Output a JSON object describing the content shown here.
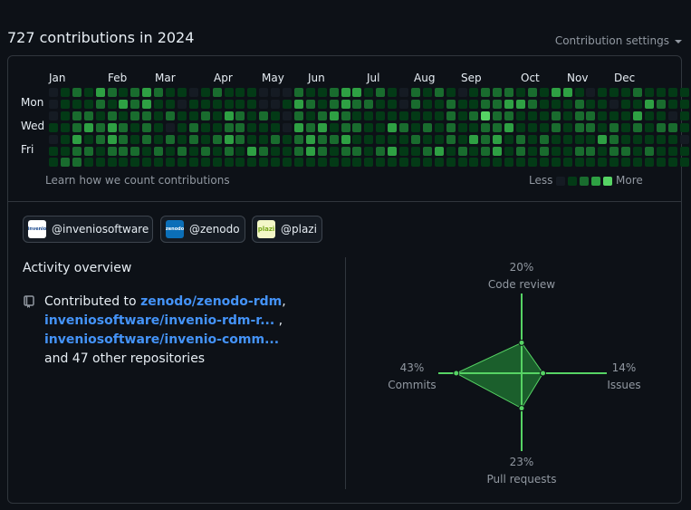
{
  "header": {
    "title": "727 contributions in 2024",
    "settings_label": "Contribution settings"
  },
  "calendar": {
    "months": [
      "Jan",
      "Feb",
      "Mar",
      "Apr",
      "May",
      "Jun",
      "Jul",
      "Aug",
      "Sep",
      "Oct",
      "Nov",
      "Dec"
    ],
    "days": [
      "Mon",
      "Wed",
      "Fri"
    ],
    "learn_label": "Learn how we count contributions",
    "less_label": "Less",
    "more_label": "More",
    "level_colors": [
      "#151b23",
      "#033a16",
      "#196c2e",
      "#2ea043",
      "#56d364"
    ],
    "levels": [
      [
        0,
        1,
        2,
        1,
        3,
        2,
        1,
        2,
        3,
        2,
        1,
        1,
        0,
        1,
        2,
        1,
        1,
        1,
        0,
        0,
        0,
        2,
        1,
        1,
        2,
        3,
        3,
        1,
        2,
        1,
        0,
        2,
        1,
        2,
        1,
        0,
        1,
        2,
        2,
        2,
        1,
        2,
        1,
        3,
        3,
        1,
        0,
        1,
        1,
        1,
        2,
        1,
        1,
        1,
        1,
        0
      ],
      [
        0,
        1,
        1,
        1,
        2,
        1,
        3,
        2,
        3,
        1,
        1,
        0,
        1,
        1,
        1,
        1,
        1,
        1,
        0,
        0,
        1,
        3,
        2,
        1,
        2,
        3,
        2,
        2,
        1,
        1,
        0,
        2,
        1,
        1,
        2,
        1,
        1,
        2,
        2,
        3,
        3,
        2,
        1,
        1,
        1,
        2,
        1,
        1,
        0,
        1,
        1,
        3,
        2,
        1,
        1,
        0
      ],
      [
        0,
        1,
        2,
        2,
        1,
        2,
        1,
        2,
        2,
        1,
        2,
        1,
        1,
        2,
        1,
        3,
        2,
        1,
        2,
        1,
        0,
        2,
        1,
        2,
        3,
        2,
        1,
        1,
        1,
        1,
        1,
        1,
        1,
        1,
        2,
        1,
        2,
        4,
        2,
        2,
        1,
        1,
        1,
        2,
        1,
        2,
        2,
        1,
        1,
        1,
        3,
        1,
        1,
        0,
        1,
        1
      ],
      [
        1,
        1,
        2,
        3,
        2,
        3,
        2,
        1,
        2,
        1,
        0,
        1,
        2,
        1,
        1,
        2,
        2,
        1,
        1,
        1,
        0,
        3,
        2,
        3,
        1,
        2,
        2,
        1,
        1,
        3,
        2,
        1,
        2,
        1,
        2,
        1,
        1,
        2,
        2,
        3,
        1,
        1,
        1,
        2,
        1,
        2,
        2,
        1,
        2,
        1,
        2,
        1,
        2,
        2,
        1,
        1
      ],
      [
        0,
        1,
        3,
        1,
        2,
        3,
        2,
        1,
        2,
        1,
        2,
        1,
        2,
        1,
        2,
        3,
        2,
        1,
        1,
        2,
        1,
        2,
        3,
        2,
        2,
        3,
        1,
        1,
        1,
        1,
        1,
        2,
        1,
        1,
        2,
        1,
        3,
        2,
        3,
        1,
        2,
        1,
        2,
        1,
        1,
        1,
        1,
        3,
        2,
        1,
        1,
        1,
        1,
        1,
        0,
        0
      ],
      [
        1,
        1,
        2,
        2,
        1,
        2,
        2,
        2,
        1,
        2,
        1,
        2,
        1,
        2,
        1,
        2,
        1,
        3,
        2,
        1,
        1,
        2,
        3,
        2,
        1,
        2,
        2,
        1,
        2,
        3,
        1,
        1,
        2,
        3,
        1,
        2,
        1,
        2,
        3,
        1,
        2,
        1,
        2,
        1,
        1,
        2,
        2,
        1,
        2,
        2,
        1,
        2,
        1,
        1,
        1,
        0
      ],
      [
        1,
        2,
        2,
        1,
        1,
        1,
        1,
        1,
        1,
        1,
        1,
        1,
        1,
        1,
        1,
        1,
        1,
        1,
        1,
        1,
        1,
        1,
        1,
        1,
        1,
        1,
        1,
        1,
        1,
        1,
        1,
        1,
        1,
        1,
        1,
        1,
        1,
        1,
        1,
        1,
        1,
        1,
        1,
        1,
        1,
        1,
        1,
        1,
        1,
        1,
        1,
        1,
        1,
        1,
        1,
        0
      ]
    ]
  },
  "orgs": [
    {
      "handle": "@inveniosoftware",
      "logo_text": "invenio"
    },
    {
      "handle": "@zenodo",
      "logo_text": "zenodo"
    },
    {
      "handle": "@plazi",
      "logo_text": "plazi"
    }
  ],
  "activity": {
    "title": "Activity overview",
    "prefix": "Contributed to",
    "repo1": "zenodo/zenodo-rdm",
    "repo2": "inveniosoftware/invenio-rdm-r...",
    "repo3": "inveniosoftware/invenio-comm...",
    "suffix": "and 47 other repositories"
  },
  "radar": {
    "code_review": {
      "pct": "20%",
      "label": "Code review",
      "value": 20
    },
    "issues": {
      "pct": "14%",
      "label": "Issues",
      "value": 14
    },
    "pull_requests": {
      "pct": "23%",
      "label": "Pull requests",
      "value": 23
    },
    "commits": {
      "pct": "43%",
      "label": "Commits",
      "value": 43
    }
  },
  "colors": {
    "accent": "#4493f8",
    "green": "#56d364",
    "radar_fill": "#1f6d30"
  }
}
